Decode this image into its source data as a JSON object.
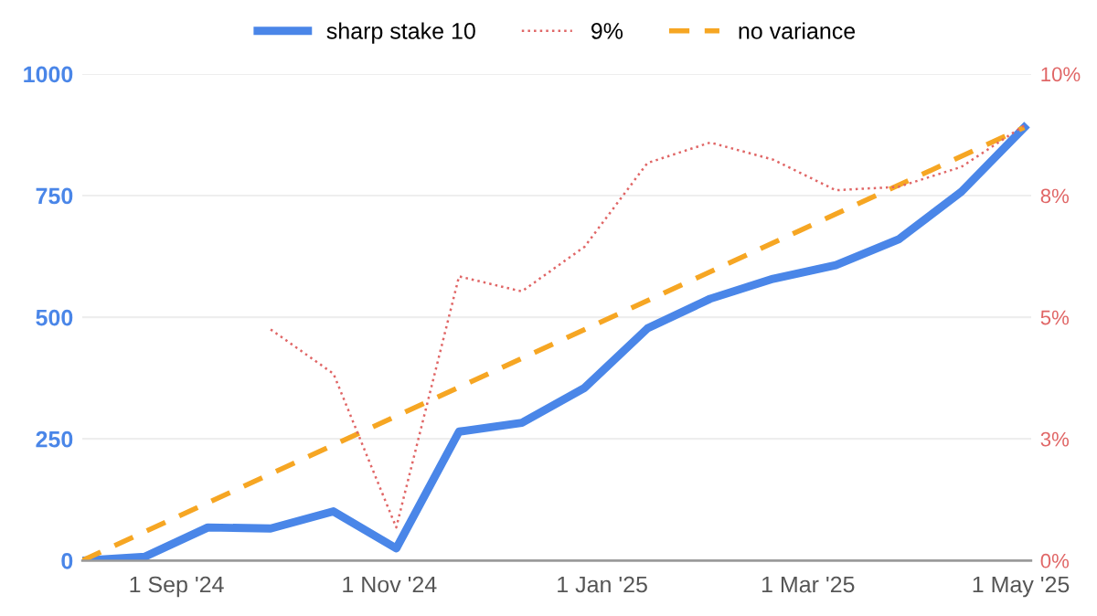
{
  "chart_data": {
    "type": "line",
    "x": [
      "2024-08-05",
      "2024-08-23",
      "2024-09-10",
      "2024-09-28",
      "2024-10-16",
      "2024-11-03",
      "2024-11-21",
      "2024-12-09",
      "2024-12-27",
      "2025-01-14",
      "2025-02-01",
      "2025-02-19",
      "2025-03-09",
      "2025-03-27",
      "2025-04-14",
      "2025-05-02"
    ],
    "series": [
      {
        "name": "sharp stake 10",
        "color": "#4a86e8",
        "line_style": "solid",
        "values": [
          0,
          8,
          68,
          66,
          101,
          25,
          265,
          283,
          355,
          477,
          538,
          579,
          607,
          660,
          758,
          890
        ]
      },
      {
        "name": "9%",
        "color": "#e06666",
        "line_style": "dotted",
        "axis": "y2",
        "values": [
          null,
          null,
          null,
          4.75,
          3.84,
          0.68,
          5.84,
          5.53,
          6.45,
          8.17,
          8.59,
          8.24,
          7.61,
          7.68,
          8.09,
          8.94
        ]
      },
      {
        "name": "no variance",
        "color": "#f6a623",
        "line_style": "dashed",
        "x": [
          "2024-08-05",
          "2025-05-02"
        ],
        "values": [
          0,
          890
        ]
      }
    ],
    "xlim": [
      "2024-08-05",
      "2025-05-04"
    ],
    "xticks": [
      {
        "value": "2024-09-01",
        "label": "1 Sep '24"
      },
      {
        "value": "2024-11-01",
        "label": "1 Nov '24"
      },
      {
        "value": "2025-01-01",
        "label": "1 Jan '25"
      },
      {
        "value": "2025-03-01",
        "label": "1 Mar '25"
      },
      {
        "value": "2025-05-01",
        "label": "1 May '25"
      }
    ],
    "ylim": [
      0,
      1000
    ],
    "yticks": [
      0,
      250,
      500,
      750,
      1000
    ],
    "y2lim": [
      0,
      10
    ],
    "y2ticks": [
      {
        "value": 0,
        "label": "0%"
      },
      {
        "value": 2.5,
        "label": "3%"
      },
      {
        "value": 5,
        "label": "5%"
      },
      {
        "value": 7.5,
        "label": "8%"
      },
      {
        "value": 10,
        "label": "10%"
      }
    ],
    "grid": "y",
    "legend": "top"
  }
}
